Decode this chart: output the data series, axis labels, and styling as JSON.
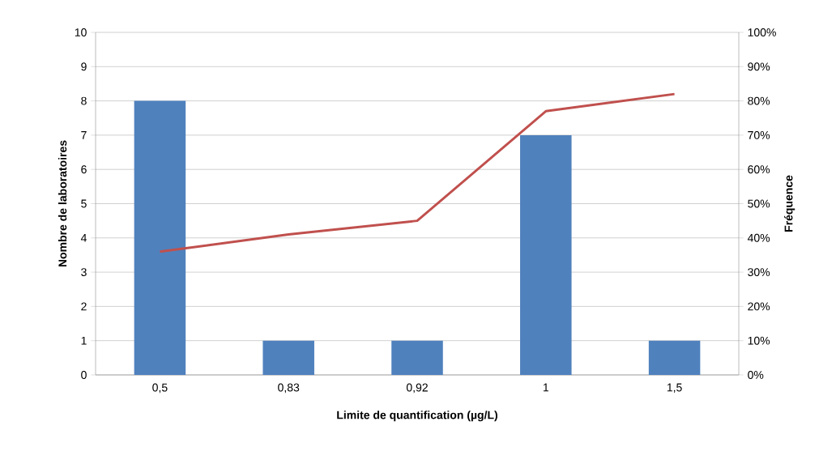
{
  "chart_data": {
    "type": "bar",
    "categories": [
      "0,5",
      "0,83",
      "0,92",
      "1",
      "1,5"
    ],
    "series": [
      {
        "color": "#4f81bd",
        "values": [
          8,
          1,
          1,
          7,
          1
        ]
      },
      {
        "type": "line",
        "axis": "y2",
        "color": "#c0504d",
        "values": [
          36,
          41,
          45,
          77,
          82
        ]
      }
    ],
    "xlabel": "Limite de quantification (µg/L)",
    "ylabel": "Nombre de laboratoires",
    "y2label": "Fréquence",
    "ylim": [
      0,
      10
    ],
    "yticks": [
      0,
      1,
      2,
      3,
      4,
      5,
      6,
      7,
      8,
      9,
      10
    ],
    "y2lim": [
      0,
      100
    ],
    "y2ticks": [
      {
        "value": 0,
        "label": "0%"
      },
      {
        "value": 10,
        "label": "10%"
      },
      {
        "value": 20,
        "label": "20%"
      },
      {
        "value": 30,
        "label": "30%"
      },
      {
        "value": 40,
        "label": "40%"
      },
      {
        "value": 50,
        "label": "50%"
      },
      {
        "value": 60,
        "label": "60%"
      },
      {
        "value": 70,
        "label": "70%"
      },
      {
        "value": 80,
        "label": "80%"
      },
      {
        "value": 90,
        "label": "90%"
      },
      {
        "value": 100,
        "label": "100%"
      }
    ],
    "grid": "y",
    "marker": "none",
    "line_style": "solid"
  }
}
